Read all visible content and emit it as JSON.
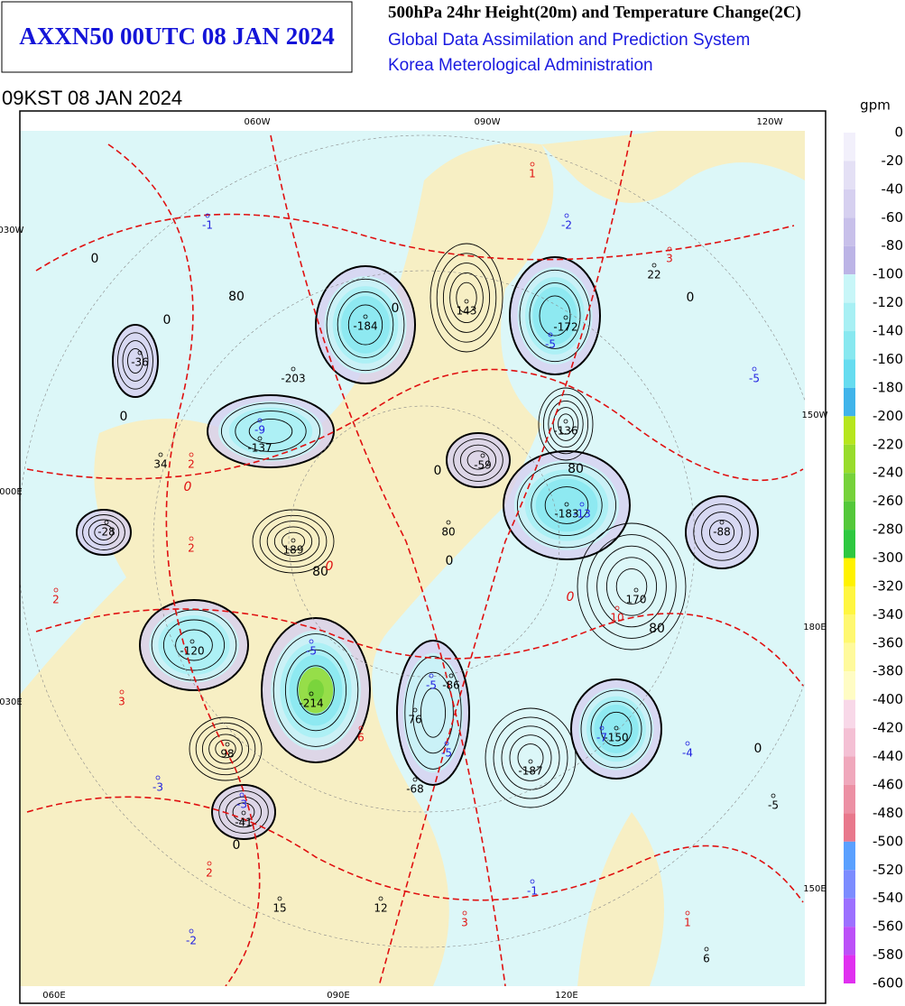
{
  "header": {
    "code": "AXXN50 00UTC 08 JAN 2024",
    "title": "500hPa 24hr Height(20m) and Temperature Change(2C)",
    "subtitle1": "Global Data Assimilation and Prediction System",
    "subtitle2": "Korea Meterological Administration",
    "valid_time": "09KST 08 JAN 2024"
  },
  "map": {
    "lon_labels": [
      "060W",
      "090W",
      "120W",
      "030W",
      "150W",
      "000E",
      "180E",
      "030E",
      "150E",
      "060E",
      "090E",
      "120E"
    ],
    "centers": [
      "22",
      "143",
      "-184",
      "-172",
      "-36",
      "-203",
      "-136",
      "-137",
      "34",
      "-59",
      "-183",
      "-28",
      "80",
      "-88",
      "189",
      "170",
      "-120",
      "-86",
      "-214",
      "76",
      "-150",
      "98",
      "-187",
      "-68",
      "-5",
      "-41",
      "15",
      "12",
      "6"
    ],
    "temp_changes": [
      "-1",
      "1",
      "-2",
      "3",
      "-5",
      "-5",
      "-9",
      "2",
      "-13",
      "2",
      "2",
      "10",
      "-5",
      "3",
      "-5",
      "-7",
      "6",
      "-5",
      "-4",
      "-3",
      "-3",
      "2",
      "-1",
      "3",
      "1",
      "-2"
    ],
    "contour_labels": [
      "0",
      "0",
      "0",
      "0",
      "0",
      "0",
      "0",
      "0",
      "0",
      "80",
      "80",
      "80",
      "80",
      "0",
      "0",
      "0"
    ]
  },
  "legend": {
    "unit": "gpm",
    "labels": [
      "0",
      "-20",
      "-40",
      "-60",
      "-80",
      "-100",
      "-120",
      "-140",
      "-160",
      "-180",
      "-200",
      "-220",
      "-240",
      "-260",
      "-280",
      "-300",
      "-320",
      "-340",
      "-360",
      "-380",
      "-400",
      "-420",
      "-440",
      "-460",
      "-480",
      "-500",
      "-520",
      "-540",
      "-560",
      "-580",
      "-600"
    ],
    "colors": [
      "#f2f0fb",
      "#e4e0f5",
      "#d6d0f0",
      "#c8c0ea",
      "#bcb4e6",
      "#c8f6f8",
      "#a8f0f4",
      "#88e8f0",
      "#66dcf0",
      "#40b4ea",
      "#b6e61e",
      "#98dc2c",
      "#76d23a",
      "#54c83a",
      "#2ec840",
      "#fff200",
      "#fff640",
      "#fff870",
      "#fffa9c",
      "#fffcc4",
      "#f8d8e8",
      "#f4c0d4",
      "#f0a8bc",
      "#ec90a4",
      "#e8788c",
      "#5aa0ff",
      "#7c8cff",
      "#9c70ff",
      "#bc50f8",
      "#e030f0"
    ]
  }
}
